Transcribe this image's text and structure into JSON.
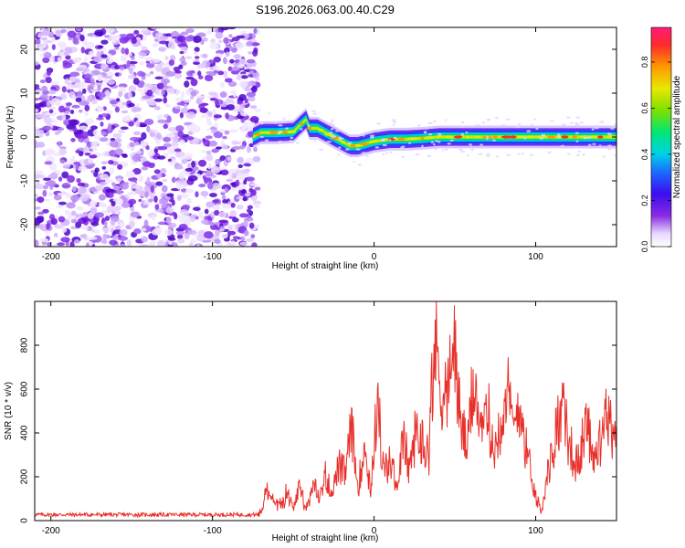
{
  "title": "S196.2026.063.00.40.C29",
  "chart_data": [
    {
      "type": "heatmap",
      "title": "S196.2026.063.00.40.C29",
      "xlabel": "Height of straight line (km)",
      "ylabel": "Frequency (Hz)",
      "xlim": [
        -210,
        150
      ],
      "ylim": [
        -25,
        25
      ],
      "xticks": [
        -200,
        -100,
        0,
        100
      ],
      "xtick_labels": [
        "-200",
        "-100",
        "0",
        "100"
      ],
      "yticks": [
        -20,
        -10,
        0,
        10,
        20
      ],
      "ytick_labels": [
        "-20",
        "-10",
        "0",
        "10",
        "20"
      ],
      "noise_region": {
        "x_range": [
          -210,
          -72
        ],
        "description_value": "scattered low amplitude"
      },
      "ridge": {
        "x": [
          -75,
          -70,
          -60,
          -50,
          -45,
          -42,
          -40,
          -35,
          -30,
          -25,
          -20,
          -15,
          -10,
          -5,
          0,
          10,
          20,
          30,
          40,
          50,
          60,
          70,
          80,
          90,
          100,
          110,
          120,
          130,
          140,
          150
        ],
        "y": [
          0,
          1,
          1,
          1.2,
          3,
          4,
          2,
          2,
          1,
          0,
          -1,
          -2,
          -2,
          -1.5,
          -1,
          -0.5,
          -0.5,
          -0.3,
          0,
          0,
          0,
          0,
          0,
          0,
          0,
          0,
          0,
          0,
          0,
          0
        ]
      },
      "colorbar": {
        "label": "Normalized spectral amplitude",
        "range": [
          0,
          0.95
        ],
        "ticks": [
          0.0,
          0.2,
          0.4,
          0.6,
          0.8
        ],
        "tick_labels": [
          "0.0",
          "0.2",
          "0.4",
          "0.6",
          "0.8"
        ]
      }
    },
    {
      "type": "line",
      "xlabel": "Height of straight line (km)",
      "ylabel": "SNR (10 * v/v)",
      "xlim": [
        -210,
        150
      ],
      "ylim": [
        0,
        1000
      ],
      "xticks": [
        -200,
        -100,
        0,
        100
      ],
      "xtick_labels": [
        "-200",
        "-100",
        "0",
        "100"
      ],
      "yticks": [
        0,
        200,
        400,
        600,
        800
      ],
      "ytick_labels": [
        "0",
        "200",
        "400",
        "600",
        "800"
      ],
      "color": "#e8302a",
      "series": [
        {
          "name": "SNR",
          "x": [
            -210,
            -72,
            -70,
            -66,
            -62,
            -58,
            -54,
            -50,
            -46,
            -42,
            -38,
            -34,
            -30,
            -26,
            -22,
            -18,
            -14,
            -10,
            -6,
            -2,
            2,
            6,
            10,
            14,
            18,
            22,
            26,
            30,
            34,
            36,
            38,
            40,
            42,
            46,
            50,
            52,
            54,
            58,
            62,
            66,
            70,
            74,
            78,
            82,
            86,
            90,
            94,
            98,
            100,
            104,
            108,
            112,
            116,
            120,
            124,
            128,
            132,
            136,
            140,
            144,
            148,
            150
          ],
          "y": [
            25,
            25,
            60,
            170,
            120,
            80,
            160,
            60,
            210,
            60,
            200,
            120,
            250,
            150,
            300,
            250,
            510,
            180,
            420,
            170,
            670,
            250,
            330,
            200,
            440,
            280,
            500,
            430,
            380,
            800,
            960,
            870,
            700,
            720,
            980,
            700,
            500,
            400,
            850,
            420,
            650,
            350,
            560,
            750,
            500,
            680,
            400,
            250,
            120,
            80,
            280,
            460,
            620,
            480,
            300,
            380,
            560,
            340,
            420,
            600,
            480,
            460
          ]
        }
      ]
    }
  ]
}
